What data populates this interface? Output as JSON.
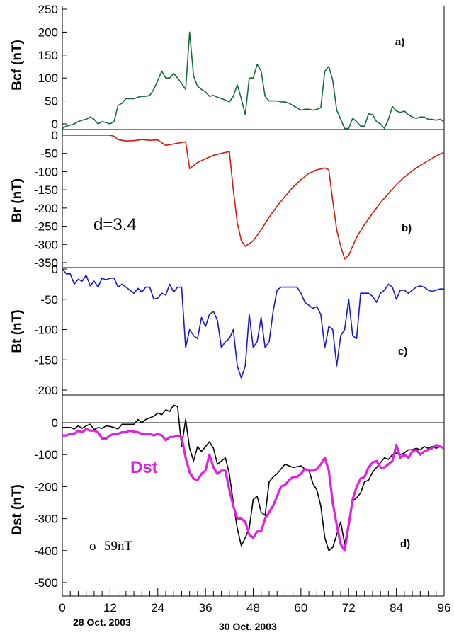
{
  "x_axis": {
    "min": 0,
    "max": 96,
    "ticks": [
      "0",
      "12",
      "24",
      "36",
      "48",
      "60",
      "72",
      "84",
      "96"
    ],
    "minor_step": 2,
    "date_labels": [
      {
        "text": "28 Oct. 2003",
        "x": 2
      },
      {
        "text": "30 Oct. 2003",
        "x": 48
      }
    ]
  },
  "chart_data": [
    {
      "type": "line",
      "panel": "a)",
      "ylabel": "Bcf (nT)",
      "ylim": [
        0,
        250
      ],
      "yticks": [
        "250",
        "200",
        "150",
        "100",
        "50",
        "0"
      ],
      "series": [
        {
          "name": "",
          "color": "#1a6b3c",
          "x": [
            0,
            1,
            2,
            3,
            4,
            5,
            6,
            7,
            8,
            9,
            10,
            11,
            12,
            13,
            14,
            15,
            16,
            17,
            18,
            19,
            20,
            21,
            22,
            23,
            24,
            25,
            26,
            27,
            28,
            29,
            30,
            31,
            32,
            33,
            34,
            35,
            36,
            37,
            38,
            39,
            40,
            41,
            42,
            43,
            44,
            45,
            46,
            47,
            48,
            49,
            50,
            51,
            52,
            53,
            54,
            55,
            56,
            57,
            58,
            59,
            60,
            61,
            62,
            63,
            64,
            65,
            66,
            67,
            68,
            69,
            70,
            71,
            72,
            73,
            74,
            75,
            76,
            77,
            78,
            79,
            80,
            81,
            82,
            83,
            84,
            85,
            86,
            87,
            88,
            89,
            90,
            91,
            92,
            93,
            94,
            95,
            96
          ],
          "y": [
            -10,
            -5,
            -3,
            0,
            5,
            8,
            10,
            15,
            10,
            0,
            5,
            3,
            0,
            5,
            40,
            45,
            55,
            55,
            55,
            58,
            60,
            60,
            62,
            75,
            95,
            115,
            100,
            100,
            110,
            100,
            88,
            75,
            200,
            105,
            82,
            75,
            70,
            60,
            62,
            58,
            55,
            52,
            48,
            60,
            85,
            55,
            20,
            100,
            100,
            130,
            115,
            60,
            50,
            50,
            50,
            48,
            48,
            45,
            40,
            35,
            30,
            32,
            32,
            30,
            32,
            35,
            115,
            125,
            95,
            30,
            10,
            -10,
            -10,
            12,
            5,
            -5,
            -5,
            22,
            20,
            5,
            0,
            -10,
            10,
            38,
            28,
            25,
            28,
            20,
            15,
            12,
            15,
            15,
            10,
            10,
            8,
            10,
            5
          ]
        }
      ]
    },
    {
      "type": "line",
      "panel": "b)",
      "ylabel": "Br (nT)",
      "ylim": [
        -350,
        0
      ],
      "yticks": [
        "0",
        "-50",
        "-100",
        "-150",
        "-200",
        "-250",
        "-300",
        "-350"
      ],
      "annotation": "d=3.4",
      "series": [
        {
          "name": "",
          "color": "#d11a10",
          "x": [
            0,
            2,
            4,
            6,
            8,
            10,
            12,
            13,
            14,
            16,
            18,
            20,
            22,
            24,
            26,
            28,
            30,
            31,
            32,
            34,
            36,
            38,
            40,
            42,
            43,
            44,
            45,
            46,
            47,
            48,
            50,
            52,
            54,
            56,
            58,
            60,
            62,
            64,
            66,
            67,
            68,
            69,
            70,
            71,
            72,
            74,
            76,
            78,
            80,
            82,
            84,
            86,
            88,
            90,
            92,
            94,
            96
          ],
          "y": [
            0,
            0,
            0,
            0,
            0,
            0,
            0,
            -3,
            -12,
            -16,
            -15,
            -12,
            -14,
            -13,
            -28,
            -24,
            -20,
            -18,
            -92,
            -75,
            -65,
            -55,
            -50,
            -45,
            -150,
            -240,
            -290,
            -305,
            -298,
            -290,
            -260,
            -225,
            -195,
            -168,
            -143,
            -122,
            -105,
            -95,
            -90,
            -95,
            -180,
            -260,
            -305,
            -340,
            -330,
            -280,
            -245,
            -215,
            -185,
            -160,
            -136,
            -115,
            -98,
            -83,
            -70,
            -57,
            -47
          ]
        }
      ]
    },
    {
      "type": "line",
      "panel": "c)",
      "ylabel": "Bt (nT)",
      "ylim": [
        -200,
        0
      ],
      "yticks": [
        "0",
        "-50",
        "-100",
        "-150",
        "-200"
      ],
      "series": [
        {
          "name": "",
          "color": "#1818c8",
          "x": [
            0,
            1,
            2,
            3,
            4,
            5,
            6,
            7,
            8,
            9,
            10,
            11,
            12,
            13,
            14,
            15,
            16,
            17,
            18,
            19,
            20,
            21,
            22,
            23,
            24,
            25,
            26,
            27,
            28,
            29,
            30,
            31,
            32,
            33,
            34,
            35,
            36,
            37,
            38,
            39,
            40,
            41,
            42,
            43,
            44,
            45,
            46,
            47,
            48,
            49,
            50,
            51,
            52,
            53,
            54,
            55,
            56,
            57,
            58,
            59,
            60,
            61,
            62,
            63,
            64,
            65,
            66,
            67,
            68,
            69,
            70,
            71,
            72,
            73,
            74,
            75,
            76,
            77,
            78,
            79,
            80,
            81,
            82,
            83,
            84,
            85,
            86,
            87,
            88,
            89,
            90,
            91,
            92,
            93,
            94,
            95,
            96
          ],
          "y": [
            0,
            -8,
            -8,
            -25,
            -17,
            -20,
            -10,
            -28,
            -20,
            -30,
            -15,
            -18,
            -15,
            -15,
            -30,
            -25,
            -30,
            -35,
            -40,
            -32,
            -38,
            -30,
            -30,
            -50,
            -48,
            -40,
            -43,
            -25,
            -38,
            -30,
            -30,
            -130,
            -100,
            -110,
            -115,
            -80,
            -95,
            -75,
            -70,
            -85,
            -130,
            -120,
            -115,
            -100,
            -160,
            -180,
            -160,
            -75,
            -130,
            -120,
            -80,
            -130,
            -120,
            -70,
            -35,
            -30,
            -30,
            -30,
            -30,
            -30,
            -40,
            -55,
            -60,
            -65,
            -62,
            -75,
            -130,
            -95,
            -100,
            -160,
            -110,
            -100,
            -50,
            -110,
            -115,
            -40,
            -40,
            -40,
            -45,
            -55,
            -40,
            -35,
            -25,
            -30,
            -50,
            -35,
            -35,
            -40,
            -35,
            -30,
            -28,
            -30,
            -35,
            -37,
            -35,
            -33,
            -33
          ]
        }
      ]
    },
    {
      "type": "line",
      "panel": "d)",
      "ylabel": "Dst (nT)",
      "ylim": [
        -500,
        0
      ],
      "yticks": [
        "0",
        "-100",
        "-200",
        "-300",
        "-400",
        "-500"
      ],
      "hline": 0,
      "annotation": "σ=59nT",
      "legend_label": "Dst",
      "series": [
        {
          "name": "",
          "color": "#000000",
          "x": [
            0,
            1,
            2,
            3,
            4,
            5,
            6,
            7,
            8,
            9,
            10,
            11,
            12,
            13,
            14,
            15,
            16,
            17,
            18,
            19,
            20,
            21,
            22,
            23,
            24,
            25,
            26,
            27,
            28,
            29,
            30,
            31,
            32,
            33,
            34,
            35,
            36,
            37,
            38,
            39,
            40,
            41,
            42,
            43,
            44,
            45,
            46,
            47,
            48,
            49,
            50,
            51,
            52,
            53,
            54,
            55,
            56,
            57,
            58,
            59,
            60,
            61,
            62,
            63,
            64,
            65,
            66,
            67,
            68,
            69,
            70,
            71,
            72,
            73,
            74,
            75,
            76,
            77,
            78,
            79,
            80,
            81,
            82,
            83,
            84,
            85,
            86,
            87,
            88,
            89,
            90,
            91,
            92,
            93,
            94,
            95,
            96
          ],
          "y": [
            -15,
            -15,
            -15,
            -20,
            -10,
            -18,
            -10,
            -5,
            -22,
            -15,
            -18,
            -10,
            -12,
            -15,
            -20,
            -5,
            -5,
            -5,
            -5,
            10,
            0,
            10,
            15,
            20,
            30,
            25,
            40,
            35,
            55,
            50,
            -75,
            10,
            -80,
            -120,
            -75,
            -90,
            -75,
            -60,
            -80,
            -130,
            -120,
            -110,
            -160,
            -250,
            -330,
            -385,
            -360,
            -330,
            -240,
            -230,
            -280,
            -290,
            -185,
            -170,
            -160,
            -145,
            -130,
            -135,
            -140,
            -138,
            -135,
            -145,
            -148,
            -190,
            -210,
            -260,
            -360,
            -400,
            -390,
            -350,
            -310,
            -380,
            -310,
            -245,
            -235,
            -220,
            -185,
            -180,
            -155,
            -140,
            -125,
            -110,
            -115,
            -100,
            -95,
            -100,
            -95,
            -85,
            -85,
            -80,
            -85,
            -75,
            -80,
            -75,
            -80,
            -75,
            -80
          ]
        },
        {
          "name": "Dst",
          "color": "#e020e0",
          "x": [
            0,
            1,
            2,
            3,
            4,
            5,
            6,
            7,
            8,
            9,
            10,
            11,
            12,
            13,
            14,
            15,
            16,
            17,
            18,
            19,
            20,
            21,
            22,
            23,
            24,
            25,
            26,
            27,
            28,
            29,
            30,
            31,
            32,
            33,
            34,
            35,
            36,
            37,
            38,
            39,
            40,
            41,
            42,
            43,
            44,
            45,
            46,
            47,
            48,
            49,
            50,
            51,
            52,
            53,
            54,
            55,
            56,
            57,
            58,
            59,
            60,
            61,
            62,
            63,
            64,
            65,
            66,
            67,
            68,
            69,
            70,
            71,
            72,
            73,
            74,
            75,
            76,
            77,
            78,
            79,
            80,
            81,
            82,
            83,
            84,
            85,
            86,
            87,
            88,
            89,
            90,
            91,
            92,
            93,
            94,
            95,
            96
          ],
          "y": [
            -40,
            -40,
            -35,
            -35,
            -25,
            -30,
            -20,
            -25,
            -25,
            -30,
            -50,
            -50,
            -40,
            -35,
            -35,
            -30,
            -30,
            -25,
            -28,
            -30,
            -35,
            -35,
            -35,
            -40,
            -35,
            -40,
            -55,
            -45,
            -45,
            -40,
            -45,
            -110,
            -155,
            -175,
            -180,
            -160,
            -150,
            -100,
            -140,
            -160,
            -150,
            -150,
            -210,
            -260,
            -300,
            -300,
            -310,
            -350,
            -360,
            -340,
            -340,
            -300,
            -280,
            -260,
            -230,
            -200,
            -195,
            -180,
            -170,
            -170,
            -160,
            -145,
            -150,
            -150,
            -145,
            -130,
            -110,
            -150,
            -250,
            -320,
            -380,
            -400,
            -320,
            -240,
            -200,
            -175,
            -170,
            -140,
            -125,
            -120,
            -140,
            -140,
            -130,
            -120,
            -70,
            -110,
            -100,
            -110,
            -90,
            -85,
            -100,
            -90,
            -85,
            -80,
            -70,
            -75,
            -80
          ]
        }
      ]
    }
  ]
}
